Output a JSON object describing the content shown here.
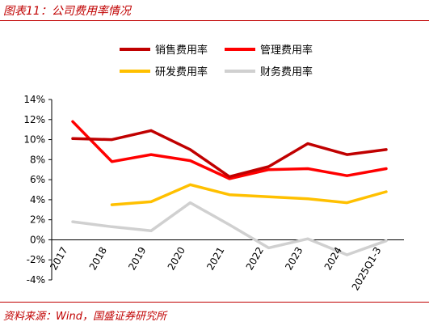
{
  "figure": {
    "title": "图表11：公司费用率情况",
    "source": "资料来源：Wind，国盛证券研究所"
  },
  "chart_data": {
    "type": "line",
    "categories": [
      "2017",
      "2018",
      "2019",
      "2020",
      "2021",
      "2022",
      "2023",
      "2024",
      "2025Q1-3"
    ],
    "ylim": [
      -4,
      14
    ],
    "yticks": [
      -4,
      -2,
      0,
      2,
      4,
      6,
      8,
      10,
      12,
      14
    ],
    "ytick_format": "percent",
    "grid": false,
    "legend_placement": "top",
    "series": [
      {
        "name": "销售费用率",
        "color": "#c00000",
        "values": [
          10.1,
          10.0,
          10.9,
          9.0,
          6.3,
          7.3,
          9.6,
          8.5,
          9.0
        ]
      },
      {
        "name": "管理费用率",
        "color": "#ff0000",
        "values": [
          11.8,
          7.8,
          8.5,
          7.9,
          6.1,
          7.0,
          7.1,
          6.4,
          7.1
        ]
      },
      {
        "name": "研发费用率",
        "color": "#ffc000",
        "values": [
          null,
          3.5,
          3.8,
          5.5,
          4.5,
          4.3,
          4.1,
          3.7,
          4.8
        ]
      },
      {
        "name": "财务费用率",
        "color": "#d0d0d0",
        "values": [
          1.8,
          1.3,
          0.9,
          3.7,
          1.5,
          -0.8,
          0.1,
          -1.5,
          -0.1
        ]
      }
    ]
  }
}
